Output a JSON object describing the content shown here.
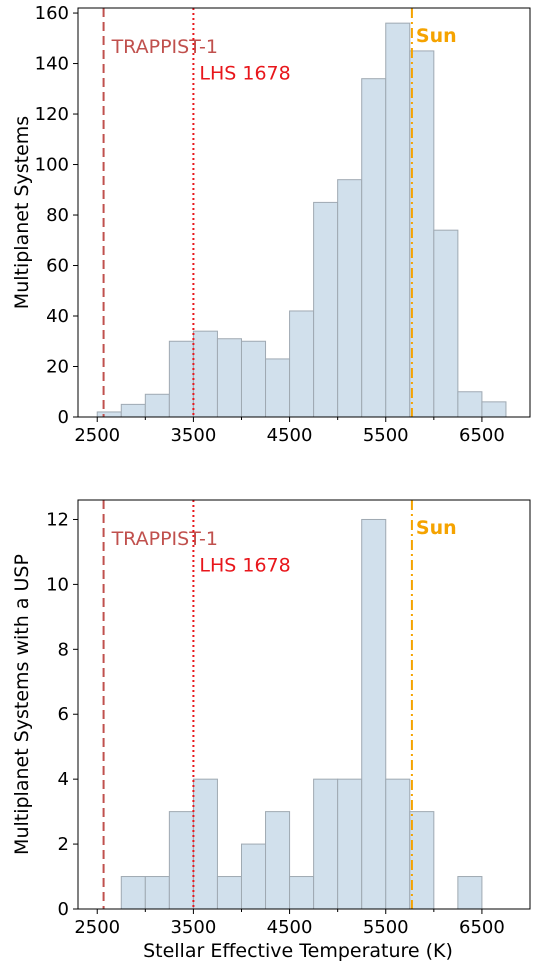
{
  "chart_data": [
    {
      "type": "bar",
      "title": "",
      "xlabel": "",
      "ylabel": "Multiplanet Systems",
      "xlim": [
        2300,
        7000
      ],
      "ylim": [
        0,
        162
      ],
      "xticks": [
        2500,
        3500,
        4500,
        5500,
        6500
      ],
      "yticks": [
        0,
        20,
        40,
        60,
        80,
        100,
        120,
        140,
        160
      ],
      "bin_edges": [
        2500,
        2750,
        3000,
        3250,
        3500,
        3750,
        4000,
        4250,
        4500,
        4750,
        5000,
        5250,
        5500,
        5750,
        6000,
        6250,
        6500,
        6750
      ],
      "values": [
        2,
        5,
        9,
        30,
        34,
        31,
        30,
        23,
        42,
        85,
        94,
        134,
        156,
        145,
        74,
        10,
        6
      ],
      "reference_lines": [
        {
          "label": "TRAPPIST-1",
          "x": 2566,
          "style": "dashed",
          "color": "#c0504d"
        },
        {
          "label": "LHS 1678",
          "x": 3500,
          "style": "dotted",
          "color": "#e8161b"
        },
        {
          "label": "Sun",
          "x": 5772,
          "style": "dashdot",
          "color": "#f5a300"
        }
      ]
    },
    {
      "type": "bar",
      "title": "",
      "xlabel": "Stellar Effective Temperature (K)",
      "ylabel": "Multiplanet Systems with a USP",
      "xlim": [
        2300,
        7000
      ],
      "ylim": [
        0,
        12.6
      ],
      "xticks": [
        2500,
        3500,
        4500,
        5500,
        6500
      ],
      "yticks": [
        0,
        2,
        4,
        6,
        8,
        10,
        12
      ],
      "bin_edges": [
        2500,
        2750,
        3000,
        3250,
        3500,
        3750,
        4000,
        4250,
        4500,
        4750,
        5000,
        5250,
        5500,
        5750,
        6000,
        6250,
        6500,
        6750
      ],
      "values": [
        0,
        1,
        1,
        3,
        4,
        1,
        2,
        3,
        1,
        4,
        4,
        12,
        4,
        3,
        0,
        1,
        0
      ],
      "reference_lines": [
        {
          "label": "TRAPPIST-1",
          "x": 2566,
          "style": "dashed",
          "color": "#c0504d"
        },
        {
          "label": "LHS 1678",
          "x": 3500,
          "style": "dotted",
          "color": "#e8161b"
        },
        {
          "label": "Sun",
          "x": 5772,
          "style": "dashdot",
          "color": "#f5a300"
        }
      ]
    }
  ]
}
